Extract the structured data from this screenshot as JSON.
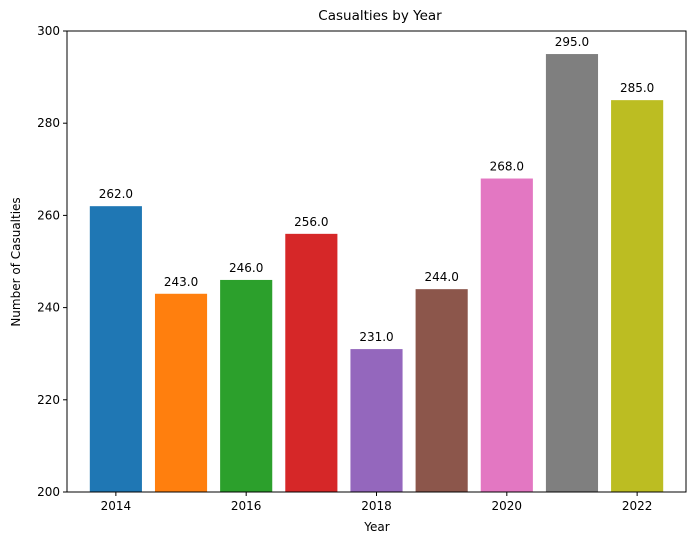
{
  "chart_data": {
    "type": "bar",
    "title": "Casualties by Year",
    "xlabel": "Year",
    "ylabel": "Number of Casualties",
    "categories": [
      2014,
      2015,
      2016,
      2017,
      2018,
      2019,
      2020,
      2021,
      2022
    ],
    "values": [
      262.0,
      243.0,
      246.0,
      256.0,
      231.0,
      244.0,
      268.0,
      295.0,
      285.0
    ],
    "data_labels": [
      "262.0",
      "243.0",
      "246.0",
      "256.0",
      "231.0",
      "244.0",
      "268.0",
      "295.0",
      "285.0"
    ],
    "colors": [
      "#1f77b4",
      "#ff7f0e",
      "#2ca02c",
      "#d62728",
      "#9467bd",
      "#8c564b",
      "#e377c2",
      "#7f7f7f",
      "#bcbd22"
    ],
    "ylim": [
      200,
      300
    ],
    "xlim": [
      2013.25,
      2022.75
    ],
    "yticks": [
      200,
      220,
      240,
      260,
      280,
      300
    ],
    "xticks": [
      2014,
      2016,
      2018,
      2020,
      2022
    ],
    "grid": false,
    "legend": "none"
  }
}
